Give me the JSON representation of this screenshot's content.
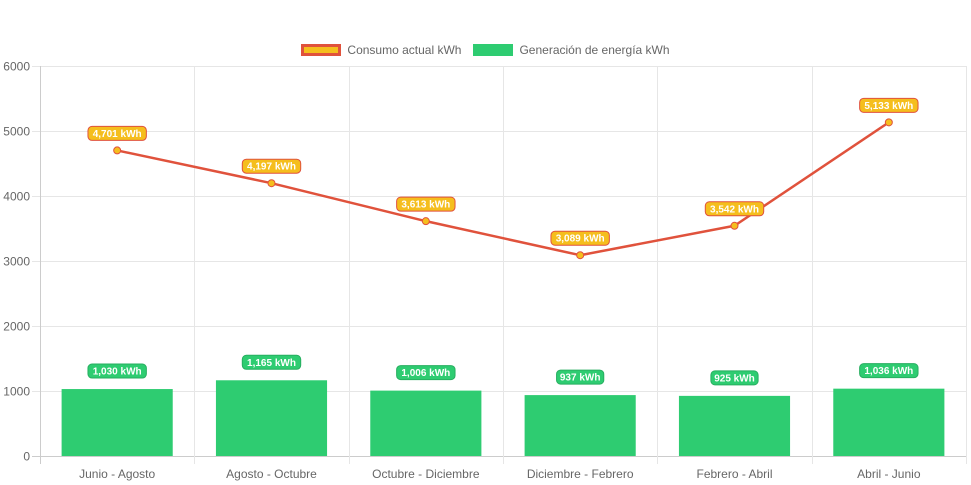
{
  "chart_data": {
    "type": "bar",
    "categories": [
      "Junio - Agosto",
      "Agosto - Octubre",
      "Octubre - Diciembre",
      "Diciembre - Febrero",
      "Febrero - Abril",
      "Abril - Junio"
    ],
    "series": [
      {
        "name": "Consumo actual kWh",
        "type": "line",
        "values": [
          4701,
          4197,
          3613,
          3089,
          3542,
          5133
        ],
        "data_labels": [
          "4,701 kWh",
          "4,197 kWh",
          "3,613 kWh",
          "3,089 kWh",
          "3,542 kWh",
          "5,133 kWh"
        ],
        "line_color": "#e0523c",
        "fill_color": "#f5be1d"
      },
      {
        "name": "Generación de energía kWh",
        "type": "bar",
        "values": [
          1030,
          1165,
          1006,
          937,
          925,
          1036
        ],
        "data_labels": [
          "1,030 kWh",
          "1,165 kWh",
          "1,006 kWh",
          "937 kWh",
          "925 kWh",
          "1,036 kWh"
        ],
        "color": "#2ecc71"
      }
    ],
    "ylim": [
      0,
      6000
    ],
    "yticks": [
      "0",
      "1000",
      "2000",
      "3000",
      "4000",
      "5000",
      "6000"
    ],
    "grid": true,
    "legend_position": "top-center"
  }
}
